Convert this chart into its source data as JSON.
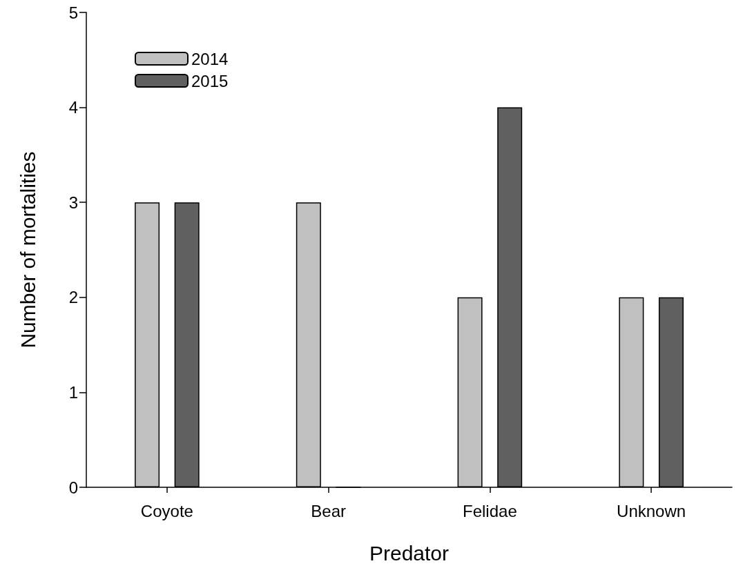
{
  "chart_data": {
    "type": "bar",
    "xlabel": "Predator",
    "ylabel": "Number of mortalities",
    "categories": [
      "Coyote",
      "Bear",
      "Felidae",
      "Unknown"
    ],
    "series": [
      {
        "name": "2014",
        "color": "#c0c0c0",
        "values": [
          3,
          3,
          2,
          2
        ]
      },
      {
        "name": "2015",
        "color": "#606060",
        "values": [
          3,
          0,
          4,
          2
        ]
      }
    ],
    "ylim": [
      0,
      5
    ],
    "yticks": [
      0,
      1,
      2,
      3,
      4,
      5
    ],
    "grid": false,
    "legend": "top left"
  }
}
